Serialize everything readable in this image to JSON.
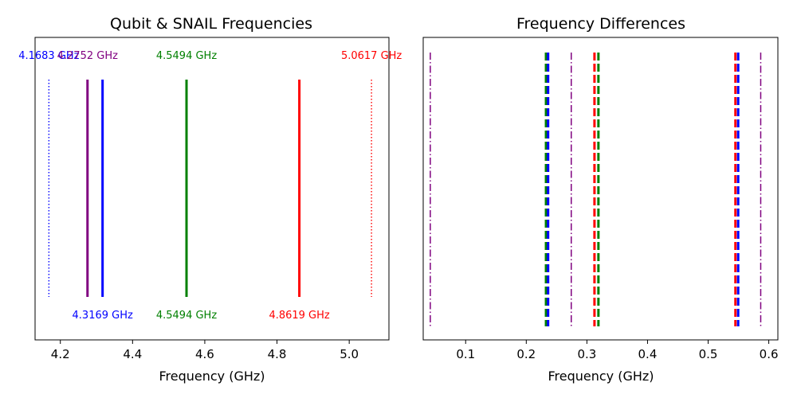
{
  "chart_data": [
    {
      "type": "vlines",
      "title": "Qubit & SNAIL Frequencies",
      "xlabel": "Frequency (GHz)",
      "ylabel": "",
      "xlim": [
        4.13,
        5.11
      ],
      "xticks": [
        4.2,
        4.4,
        4.6,
        4.8,
        5.0
      ],
      "xtick_labels": [
        "4.2",
        "4.4",
        "4.6",
        "4.8",
        "5.0"
      ],
      "grid": false,
      "lines": [
        {
          "x": 4.1683,
          "color": "#0000ff",
          "style": "dotted",
          "width": 1.4
        },
        {
          "x": 4.2752,
          "color": "#800080",
          "style": "solid",
          "width": 3
        },
        {
          "x": 4.3169,
          "color": "#0000ff",
          "style": "solid",
          "width": 3
        },
        {
          "x": 4.5494,
          "color": "#008000",
          "style": "solid",
          "width": 3
        },
        {
          "x": 4.8619,
          "color": "#ff0000",
          "style": "solid",
          "width": 3
        },
        {
          "x": 5.0617,
          "color": "#ff0000",
          "style": "dotted",
          "width": 1.4
        }
      ],
      "annotations_top": [
        {
          "x": 4.1683,
          "text": "4.1683 GHz",
          "color": "#0000ff"
        },
        {
          "x": 4.2752,
          "text": "4.2752 GHz",
          "color": "#800080"
        },
        {
          "x": 4.5494,
          "text": "4.5494 GHz",
          "color": "#008000"
        },
        {
          "x": 5.0617,
          "text": "5.0617 GHz",
          "color": "#ff0000"
        }
      ],
      "annotations_bottom": [
        {
          "x": 4.3169,
          "text": "4.3169 GHz",
          "color": "#0000ff"
        },
        {
          "x": 4.5494,
          "text": "4.5494 GHz",
          "color": "#008000"
        },
        {
          "x": 4.8619,
          "text": "4.8619 GHz",
          "color": "#ff0000"
        }
      ]
    },
    {
      "type": "vlines",
      "title": "Frequency Differences",
      "xlabel": "Frequency (GHz)",
      "ylabel": "",
      "xlim": [
        0.03,
        0.615
      ],
      "xticks": [
        0.1,
        0.2,
        0.3,
        0.4,
        0.5,
        0.6
      ],
      "xtick_labels": [
        "0.1",
        "0.2",
        "0.3",
        "0.4",
        "0.5",
        "0.6"
      ],
      "grid": false,
      "lines": [
        {
          "x": 0.0417,
          "color": "#800080",
          "style": "dashdot",
          "width": 1.5
        },
        {
          "x": 0.2325,
          "color": "#008000",
          "style": "dashed",
          "width": 3
        },
        {
          "x": 0.2742,
          "color": "#800080",
          "style": "dashdot",
          "width": 1.5
        },
        {
          "x": 0.3125,
          "color": "#ff0000",
          "style": "dashed",
          "width": 3
        },
        {
          "x": 0.545,
          "color": "#ff0000",
          "style": "dashed",
          "width": 3
        },
        {
          "x": 0.5867,
          "color": "#800080",
          "style": "dashdot",
          "width": 1.5
        },
        {
          "x": 0.236,
          "color": "#0000ff",
          "style": "dashed",
          "width": 3
        },
        {
          "x": 0.319,
          "color": "#008000",
          "style": "dashed",
          "width": 3
        },
        {
          "x": 0.5495,
          "color": "#0000ff",
          "style": "dashed",
          "width": 3
        }
      ]
    }
  ]
}
